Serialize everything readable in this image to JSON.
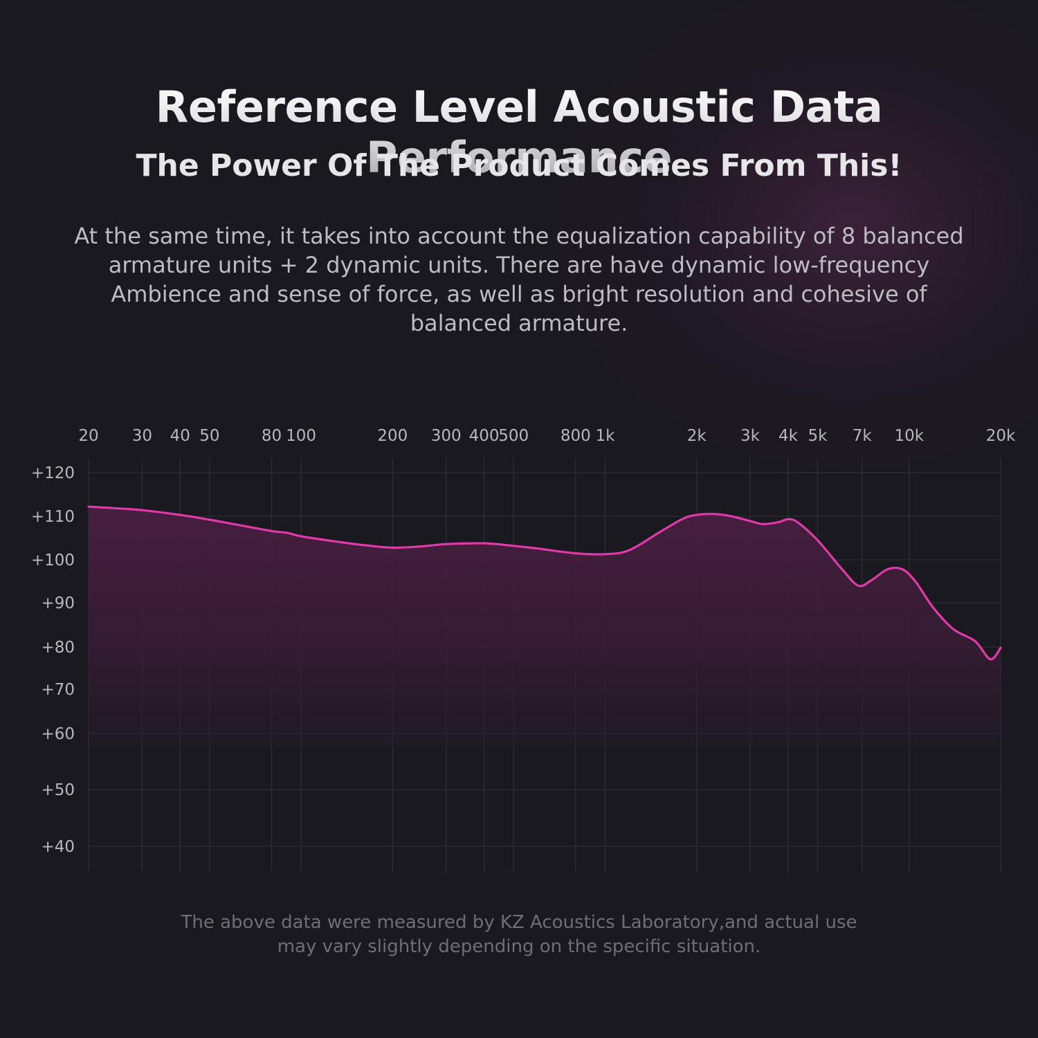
{
  "header": {
    "title": "Reference Level Acoustic Data Performance",
    "subtitle": "The Power Of The Product Comes From This!",
    "description": "At the same time, it takes into account the equalization capability of 8 balanced armature units + 2 dynamic units. There are have dynamic low-frequency Ambience and sense of force, as well as bright resolution and cohesive of balanced armature."
  },
  "footnote": "The above data were measured by KZ Acoustics Laboratory,and actual use may vary slightly depending on the specific situation.",
  "colors": {
    "background": "#1a191f",
    "curve": "#e03aa8",
    "fill": "#4a1f3f",
    "grid": "#2e2d35",
    "tick_text": "#b8b7bd"
  },
  "chart_data": {
    "type": "area",
    "x_scale": "log",
    "xlim": [
      20,
      20000
    ],
    "ylim": [
      40,
      120
    ],
    "grid": true,
    "x_ticks": [
      {
        "value": 20,
        "label": "20"
      },
      {
        "value": 30,
        "label": "30"
      },
      {
        "value": 40,
        "label": "40"
      },
      {
        "value": 50,
        "label": "50"
      },
      {
        "value": 80,
        "label": "80"
      },
      {
        "value": 100,
        "label": "100"
      },
      {
        "value": 200,
        "label": "200"
      },
      {
        "value": 300,
        "label": "300"
      },
      {
        "value": 400,
        "label": "400"
      },
      {
        "value": 500,
        "label": "500"
      },
      {
        "value": 800,
        "label": "800"
      },
      {
        "value": 1000,
        "label": "1k"
      },
      {
        "value": 2000,
        "label": "2k"
      },
      {
        "value": 3000,
        "label": "3k"
      },
      {
        "value": 4000,
        "label": "4k"
      },
      {
        "value": 5000,
        "label": "5k"
      },
      {
        "value": 7000,
        "label": "7k"
      },
      {
        "value": 10000,
        "label": "10k"
      },
      {
        "value": 20000,
        "label": "20k"
      }
    ],
    "y_ticks": [
      {
        "value": 120,
        "label": "+120"
      },
      {
        "value": 110,
        "label": "+110"
      },
      {
        "value": 100,
        "label": "+100"
      },
      {
        "value": 90,
        "label": "+90"
      },
      {
        "value": 80,
        "label": "+80"
      },
      {
        "value": 70,
        "label": "+70"
      },
      {
        "value": 60,
        "label": "+60"
      },
      {
        "value": 50,
        "label": "+50"
      },
      {
        "value": 40,
        "label": "+40"
      }
    ],
    "series": [
      {
        "x": [
          20,
          25,
          30,
          40,
          50,
          60,
          80,
          90,
          100,
          130,
          160,
          200,
          250,
          300,
          400,
          500,
          600,
          800,
          1000,
          1200,
          1500,
          1800,
          2000,
          2300,
          2600,
          3000,
          3300,
          3700,
          4000,
          4300,
          5000,
          6000,
          6800,
          7500,
          8500,
          9500,
          10500,
          12000,
          14000,
          16500,
          18500,
          20000
        ],
        "y": [
          112.2,
          111.8,
          111.4,
          110.3,
          109.2,
          108.2,
          106.6,
          106.2,
          105.4,
          104.2,
          103.4,
          102.8,
          103.1,
          103.6,
          103.8,
          103.2,
          102.6,
          101.5,
          101.3,
          102.2,
          106.2,
          109.4,
          110.3,
          110.5,
          110.0,
          108.9,
          108.2,
          108.6,
          109.3,
          108.6,
          104.5,
          97.9,
          94.0,
          95.2,
          97.8,
          97.8,
          94.9,
          88.9,
          84.0,
          81.3,
          77.1,
          79.8
        ]
      }
    ]
  }
}
